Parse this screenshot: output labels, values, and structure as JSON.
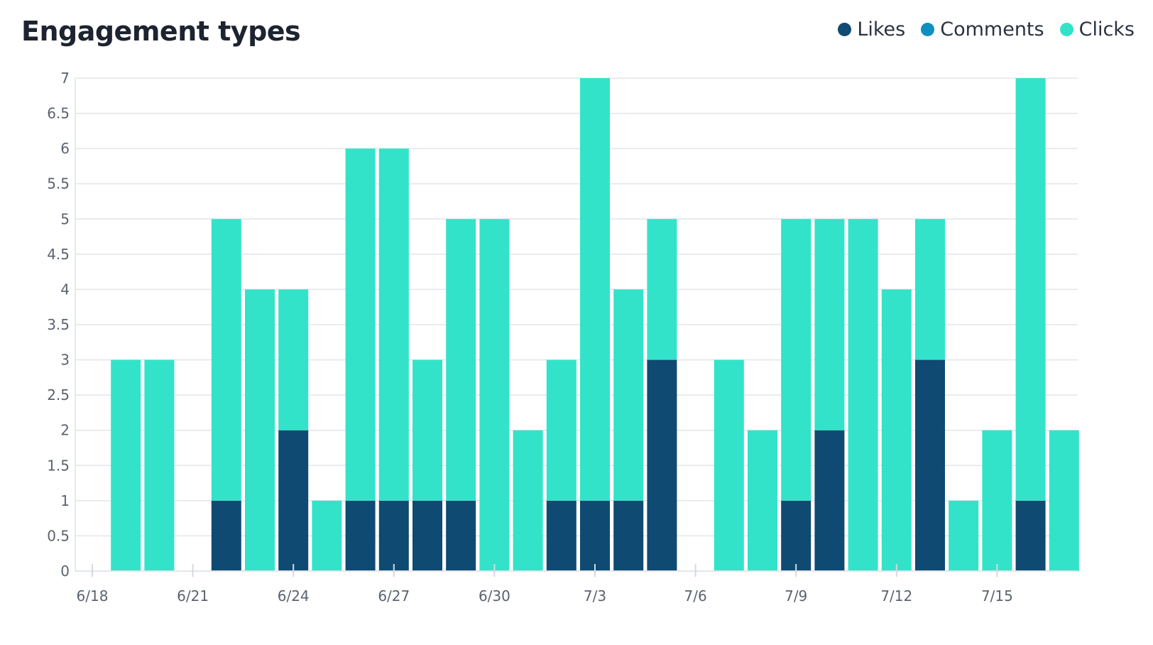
{
  "title": "Engagement types",
  "legend": [
    {
      "name": "Likes",
      "color": "#0f4a73"
    },
    {
      "name": "Comments",
      "color": "#0d8fbf"
    },
    {
      "name": "Clicks",
      "color": "#33e3c9"
    }
  ],
  "chart_data": {
    "type": "bar",
    "stacked": true,
    "title": "Engagement types",
    "xlabel": "",
    "ylabel": "",
    "ylim": [
      0,
      7
    ],
    "yticks": [
      "0",
      "0.5",
      "1",
      "1.5",
      "2",
      "2.5",
      "3",
      "3.5",
      "4",
      "4.5",
      "5",
      "5.5",
      "6",
      "6.5",
      "7"
    ],
    "xticks": [
      "6/18",
      "6/21",
      "6/24",
      "6/27",
      "6/30",
      "7/3",
      "7/6",
      "7/9",
      "7/12",
      "7/15"
    ],
    "grid": true,
    "legend_position": "top-right",
    "categories": [
      "6/18",
      "6/19",
      "6/20",
      "6/21",
      "6/22",
      "6/23",
      "6/24",
      "6/25",
      "6/26",
      "6/27",
      "6/28",
      "6/29",
      "6/30",
      "7/1",
      "7/2",
      "7/3",
      "7/4",
      "7/5",
      "7/6",
      "7/7",
      "7/8",
      "7/9",
      "7/10",
      "7/11",
      "7/12",
      "7/13",
      "7/14",
      "7/15",
      "7/16",
      "7/17"
    ],
    "series": [
      {
        "name": "Likes",
        "color": "#0f4a73",
        "values": [
          0,
          0,
          0,
          0,
          1,
          0,
          2,
          0,
          1,
          1,
          1,
          1,
          0,
          0,
          1,
          1,
          1,
          3,
          0,
          0,
          0,
          1,
          2,
          0,
          0,
          3,
          0,
          0,
          1,
          0
        ]
      },
      {
        "name": "Comments",
        "color": "#0d8fbf",
        "values": [
          0,
          0,
          0,
          0,
          0,
          0,
          0,
          0,
          0,
          0,
          0,
          0,
          0,
          0,
          0,
          0,
          0,
          0,
          0,
          0,
          0,
          0,
          0,
          0,
          0,
          0,
          0,
          0,
          0,
          0
        ]
      },
      {
        "name": "Clicks",
        "color": "#33e3c9",
        "values": [
          0,
          3,
          3,
          0,
          4,
          4,
          2,
          1,
          5,
          5,
          2,
          4,
          5,
          2,
          2,
          6,
          3,
          2,
          0,
          3,
          2,
          4,
          3,
          5,
          4,
          2,
          1,
          2,
          6,
          2
        ]
      }
    ]
  }
}
